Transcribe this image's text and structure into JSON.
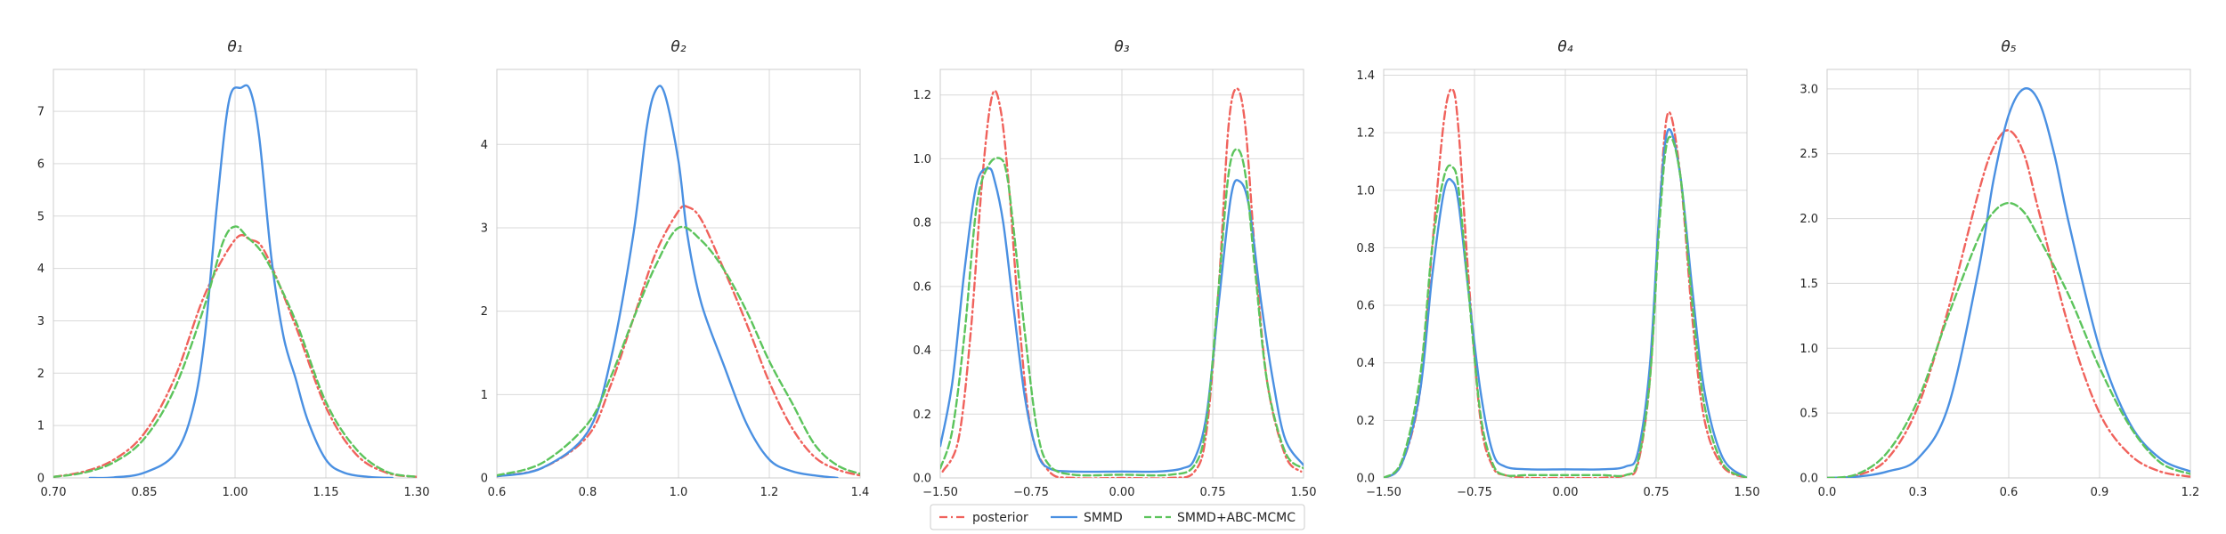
{
  "chart_data": [
    {
      "type": "line",
      "title": "θ₁",
      "xlim": [
        0.7,
        1.3
      ],
      "ylim": [
        0,
        7.8
      ],
      "xticks": [
        "0.70",
        "0.85",
        "1.00",
        "1.15",
        "1.30"
      ],
      "xtick_values": [
        0.7,
        0.85,
        1.0,
        1.15,
        1.3
      ],
      "yticks": [
        "0",
        "1",
        "2",
        "3",
        "4",
        "5",
        "6",
        "7"
      ],
      "ytick_values": [
        0,
        1,
        2,
        3,
        4,
        5,
        6,
        7
      ],
      "series": [
        {
          "name": "posterior",
          "color": "#f0625c",
          "dash": "dashdot",
          "x": [
            0.7,
            0.75,
            0.8,
            0.85,
            0.9,
            0.95,
            1.0,
            1.025,
            1.05,
            1.1,
            1.15,
            1.2,
            1.25,
            1.3
          ],
          "y": [
            0.02,
            0.12,
            0.35,
            0.85,
            1.9,
            3.5,
            4.55,
            4.55,
            4.3,
            2.9,
            1.35,
            0.45,
            0.1,
            0.02
          ]
        },
        {
          "name": "SMMD",
          "color": "#4a90e2",
          "dash": "solid",
          "x": [
            0.76,
            0.8,
            0.85,
            0.9,
            0.93,
            0.95,
            0.97,
            0.99,
            1.01,
            1.025,
            1.04,
            1.06,
            1.08,
            1.1,
            1.12,
            1.15,
            1.18,
            1.22,
            1.26
          ],
          "y": [
            0.0,
            0.01,
            0.1,
            0.45,
            1.3,
            2.7,
            5.2,
            7.2,
            7.45,
            7.4,
            6.5,
            4.2,
            2.7,
            1.9,
            1.1,
            0.35,
            0.1,
            0.02,
            0.0
          ]
        },
        {
          "name": "SMMD+ABC-MCMC",
          "color": "#5cc45c",
          "dash": "dashed",
          "x": [
            0.7,
            0.75,
            0.8,
            0.85,
            0.9,
            0.95,
            0.98,
            1.0,
            1.02,
            1.05,
            1.1,
            1.15,
            1.2,
            1.25,
            1.3
          ],
          "y": [
            0.02,
            0.1,
            0.3,
            0.75,
            1.7,
            3.3,
            4.5,
            4.8,
            4.6,
            4.2,
            3.0,
            1.45,
            0.55,
            0.12,
            0.02
          ]
        }
      ]
    },
    {
      "type": "line",
      "title": "θ₂",
      "xlim": [
        0.6,
        1.4
      ],
      "ylim": [
        0,
        4.9
      ],
      "xticks": [
        "0.6",
        "0.8",
        "1.0",
        "1.2",
        "1.4"
      ],
      "xtick_values": [
        0.6,
        0.8,
        1.0,
        1.2,
        1.4
      ],
      "yticks": [
        "0",
        "1",
        "2",
        "3",
        "4"
      ],
      "ytick_values": [
        0,
        1,
        2,
        3,
        4
      ],
      "series": [
        {
          "name": "posterior",
          "color": "#f0625c",
          "dash": "dashdot",
          "x": [
            0.6,
            0.7,
            0.8,
            0.85,
            0.9,
            0.95,
            1.0,
            1.02,
            1.05,
            1.1,
            1.15,
            1.2,
            1.25,
            1.3,
            1.35,
            1.4
          ],
          "y": [
            0.02,
            0.12,
            0.5,
            1.1,
            1.9,
            2.7,
            3.2,
            3.25,
            3.1,
            2.5,
            1.85,
            1.15,
            0.6,
            0.25,
            0.1,
            0.03
          ]
        },
        {
          "name": "SMMD",
          "color": "#4a90e2",
          "dash": "solid",
          "x": [
            0.6,
            0.7,
            0.8,
            0.85,
            0.9,
            0.93,
            0.95,
            0.97,
            1.0,
            1.02,
            1.05,
            1.1,
            1.15,
            1.2,
            1.25,
            1.3,
            1.35
          ],
          "y": [
            0.02,
            0.12,
            0.55,
            1.4,
            2.9,
            4.2,
            4.65,
            4.6,
            3.8,
            2.9,
            2.1,
            1.35,
            0.65,
            0.22,
            0.08,
            0.03,
            0.0
          ]
        },
        {
          "name": "SMMD+ABC-MCMC",
          "color": "#5cc45c",
          "dash": "dashed",
          "x": [
            0.6,
            0.7,
            0.8,
            0.85,
            0.9,
            0.95,
            1.0,
            1.05,
            1.1,
            1.15,
            1.2,
            1.25,
            1.3,
            1.35,
            1.4
          ],
          "y": [
            0.03,
            0.18,
            0.65,
            1.2,
            1.9,
            2.55,
            3.0,
            2.85,
            2.5,
            2.0,
            1.4,
            0.9,
            0.4,
            0.15,
            0.05
          ]
        }
      ]
    },
    {
      "type": "line",
      "title": "θ₃",
      "xlim": [
        -1.5,
        1.5
      ],
      "ylim": [
        0,
        1.28
      ],
      "xticks": [
        "−1.50",
        "−0.75",
        "0.00",
        "0.75",
        "1.50"
      ],
      "xtick_values": [
        -1.5,
        -0.75,
        0.0,
        0.75,
        1.5
      ],
      "yticks": [
        "0.0",
        "0.2",
        "0.4",
        "0.6",
        "0.8",
        "1.0",
        "1.2"
      ],
      "ytick_values": [
        0.0,
        0.2,
        0.4,
        0.6,
        0.8,
        1.0,
        1.2
      ],
      "series": [
        {
          "name": "posterior",
          "color": "#f0625c",
          "dash": "dashdot",
          "x": [
            -1.48,
            -1.35,
            -1.25,
            -1.15,
            -1.07,
            -1.0,
            -0.93,
            -0.85,
            -0.75,
            -0.6,
            -0.4,
            0.0,
            0.4,
            0.6,
            0.7,
            0.8,
            0.88,
            0.95,
            1.02,
            1.1,
            1.2,
            1.35,
            1.48
          ],
          "y": [
            0.02,
            0.12,
            0.45,
            0.95,
            1.2,
            1.15,
            0.9,
            0.5,
            0.15,
            0.02,
            0.0,
            0.0,
            0.0,
            0.02,
            0.15,
            0.6,
            1.1,
            1.22,
            1.1,
            0.7,
            0.3,
            0.07,
            0.02
          ]
        },
        {
          "name": "SMMD",
          "color": "#4a90e2",
          "dash": "solid",
          "x": [
            -1.5,
            -1.4,
            -1.3,
            -1.2,
            -1.1,
            -1.05,
            -0.98,
            -0.9,
            -0.8,
            -0.7,
            -0.6,
            -0.4,
            0.0,
            0.3,
            0.5,
            0.6,
            0.7,
            0.8,
            0.9,
            0.97,
            1.05,
            1.15,
            1.25,
            1.35,
            1.5
          ],
          "y": [
            0.1,
            0.3,
            0.65,
            0.92,
            0.97,
            0.93,
            0.8,
            0.55,
            0.25,
            0.08,
            0.03,
            0.02,
            0.02,
            0.02,
            0.03,
            0.06,
            0.2,
            0.55,
            0.88,
            0.93,
            0.85,
            0.55,
            0.3,
            0.12,
            0.04
          ]
        },
        {
          "name": "SMMD+ABC-MCMC",
          "color": "#5cc45c",
          "dash": "dashed",
          "x": [
            -1.5,
            -1.4,
            -1.3,
            -1.2,
            -1.1,
            -1.0,
            -0.95,
            -0.9,
            -0.8,
            -0.7,
            -0.6,
            -0.4,
            0.0,
            0.4,
            0.6,
            0.7,
            0.8,
            0.88,
            0.95,
            1.02,
            1.1,
            1.2,
            1.35,
            1.5
          ],
          "y": [
            0.03,
            0.15,
            0.45,
            0.85,
            0.98,
            1.0,
            0.95,
            0.8,
            0.45,
            0.15,
            0.04,
            0.01,
            0.01,
            0.01,
            0.04,
            0.18,
            0.6,
            0.95,
            1.03,
            0.95,
            0.65,
            0.3,
            0.08,
            0.03
          ]
        }
      ]
    },
    {
      "type": "line",
      "title": "θ₄",
      "xlim": [
        -1.5,
        1.5
      ],
      "ylim": [
        0,
        1.42
      ],
      "xticks": [
        "−1.50",
        "−0.75",
        "0.00",
        "0.75",
        "1.50"
      ],
      "xtick_values": [
        -1.5,
        -0.75,
        0.0,
        0.75,
        1.5
      ],
      "yticks": [
        "0.0",
        "0.2",
        "0.4",
        "0.6",
        "0.8",
        "1.0",
        "1.2",
        "1.4"
      ],
      "ytick_values": [
        0.0,
        0.2,
        0.4,
        0.6,
        0.8,
        1.0,
        1.2,
        1.4
      ],
      "series": [
        {
          "name": "posterior",
          "color": "#f0625c",
          "dash": "dashdot",
          "x": [
            -1.5,
            -1.35,
            -1.2,
            -1.1,
            -1.0,
            -0.93,
            -0.88,
            -0.8,
            -0.7,
            -0.6,
            -0.5,
            -0.3,
            0.0,
            0.3,
            0.5,
            0.6,
            0.7,
            0.78,
            0.85,
            0.95,
            1.05,
            1.15,
            1.3,
            1.5
          ],
          "y": [
            0.0,
            0.05,
            0.3,
            0.8,
            1.25,
            1.35,
            1.2,
            0.7,
            0.2,
            0.04,
            0.01,
            0.0,
            0.0,
            0.0,
            0.01,
            0.05,
            0.35,
            0.95,
            1.27,
            1.05,
            0.55,
            0.2,
            0.04,
            0.0
          ]
        },
        {
          "name": "SMMD",
          "color": "#4a90e2",
          "dash": "solid",
          "x": [
            -1.5,
            -1.35,
            -1.2,
            -1.1,
            -1.0,
            -0.93,
            -0.88,
            -0.8,
            -0.7,
            -0.6,
            -0.5,
            -0.3,
            0.0,
            0.3,
            0.5,
            0.6,
            0.7,
            0.78,
            0.85,
            0.95,
            1.05,
            1.15,
            1.3,
            1.5
          ],
          "y": [
            0.0,
            0.05,
            0.3,
            0.7,
            1.0,
            1.03,
            0.95,
            0.65,
            0.3,
            0.09,
            0.04,
            0.03,
            0.03,
            0.03,
            0.04,
            0.09,
            0.4,
            0.95,
            1.21,
            1.05,
            0.65,
            0.3,
            0.07,
            0.0
          ]
        },
        {
          "name": "SMMD+ABC-MCMC",
          "color": "#5cc45c",
          "dash": "dashed",
          "x": [
            -1.5,
            -1.35,
            -1.2,
            -1.1,
            -1.0,
            -0.93,
            -0.88,
            -0.8,
            -0.7,
            -0.6,
            -0.5,
            -0.3,
            0.0,
            0.3,
            0.5,
            0.6,
            0.7,
            0.78,
            0.85,
            0.95,
            1.05,
            1.15,
            1.3,
            1.5
          ],
          "y": [
            0.0,
            0.06,
            0.35,
            0.8,
            1.05,
            1.08,
            1.0,
            0.65,
            0.22,
            0.05,
            0.01,
            0.01,
            0.01,
            0.01,
            0.01,
            0.06,
            0.35,
            0.9,
            1.18,
            1.05,
            0.6,
            0.25,
            0.05,
            0.0
          ]
        }
      ]
    },
    {
      "type": "line",
      "title": "θ₅",
      "xlim": [
        0.0,
        1.2
      ],
      "ylim": [
        0,
        3.15
      ],
      "xticks": [
        "0.0",
        "0.3",
        "0.6",
        "0.9",
        "1.2"
      ],
      "xtick_values": [
        0.0,
        0.3,
        0.6,
        0.9,
        1.2
      ],
      "yticks": [
        "0.0",
        "0.5",
        "1.0",
        "1.5",
        "2.0",
        "2.5",
        "3.0"
      ],
      "ytick_values": [
        0.0,
        0.5,
        1.0,
        1.5,
        2.0,
        2.5,
        3.0
      ],
      "series": [
        {
          "name": "posterior",
          "color": "#f0625c",
          "dash": "dashdot",
          "x": [
            0.0,
            0.1,
            0.2,
            0.3,
            0.4,
            0.5,
            0.55,
            0.6,
            0.65,
            0.7,
            0.8,
            0.9,
            1.0,
            1.1,
            1.2
          ],
          "y": [
            0.0,
            0.02,
            0.15,
            0.55,
            1.3,
            2.2,
            2.55,
            2.68,
            2.5,
            2.05,
            1.15,
            0.5,
            0.18,
            0.05,
            0.01
          ]
        },
        {
          "name": "SMMD",
          "color": "#4a90e2",
          "dash": "solid",
          "x": [
            0.0,
            0.1,
            0.2,
            0.3,
            0.4,
            0.5,
            0.55,
            0.6,
            0.65,
            0.7,
            0.75,
            0.8,
            0.9,
            1.0,
            1.1,
            1.2
          ],
          "y": [
            0.0,
            0.01,
            0.05,
            0.15,
            0.55,
            1.6,
            2.3,
            2.8,
            3.0,
            2.9,
            2.5,
            1.95,
            1.0,
            0.42,
            0.15,
            0.05
          ]
        },
        {
          "name": "SMMD+ABC-MCMC",
          "color": "#5cc45c",
          "dash": "dashed",
          "x": [
            0.0,
            0.1,
            0.2,
            0.3,
            0.4,
            0.5,
            0.55,
            0.6,
            0.65,
            0.7,
            0.8,
            0.9,
            1.0,
            1.1,
            1.2
          ],
          "y": [
            0.0,
            0.03,
            0.2,
            0.6,
            1.25,
            1.85,
            2.05,
            2.12,
            2.05,
            1.85,
            1.4,
            0.85,
            0.4,
            0.12,
            0.03
          ]
        }
      ]
    }
  ],
  "legend": {
    "placement": "bottom-center",
    "entries": [
      {
        "label": "posterior",
        "color": "#f0625c",
        "dash": "dashdot"
      },
      {
        "label": "SMMD",
        "color": "#4a90e2",
        "dash": "solid"
      },
      {
        "label": "SMMD+ABC-MCMC",
        "color": "#5cc45c",
        "dash": "dashed"
      }
    ]
  }
}
